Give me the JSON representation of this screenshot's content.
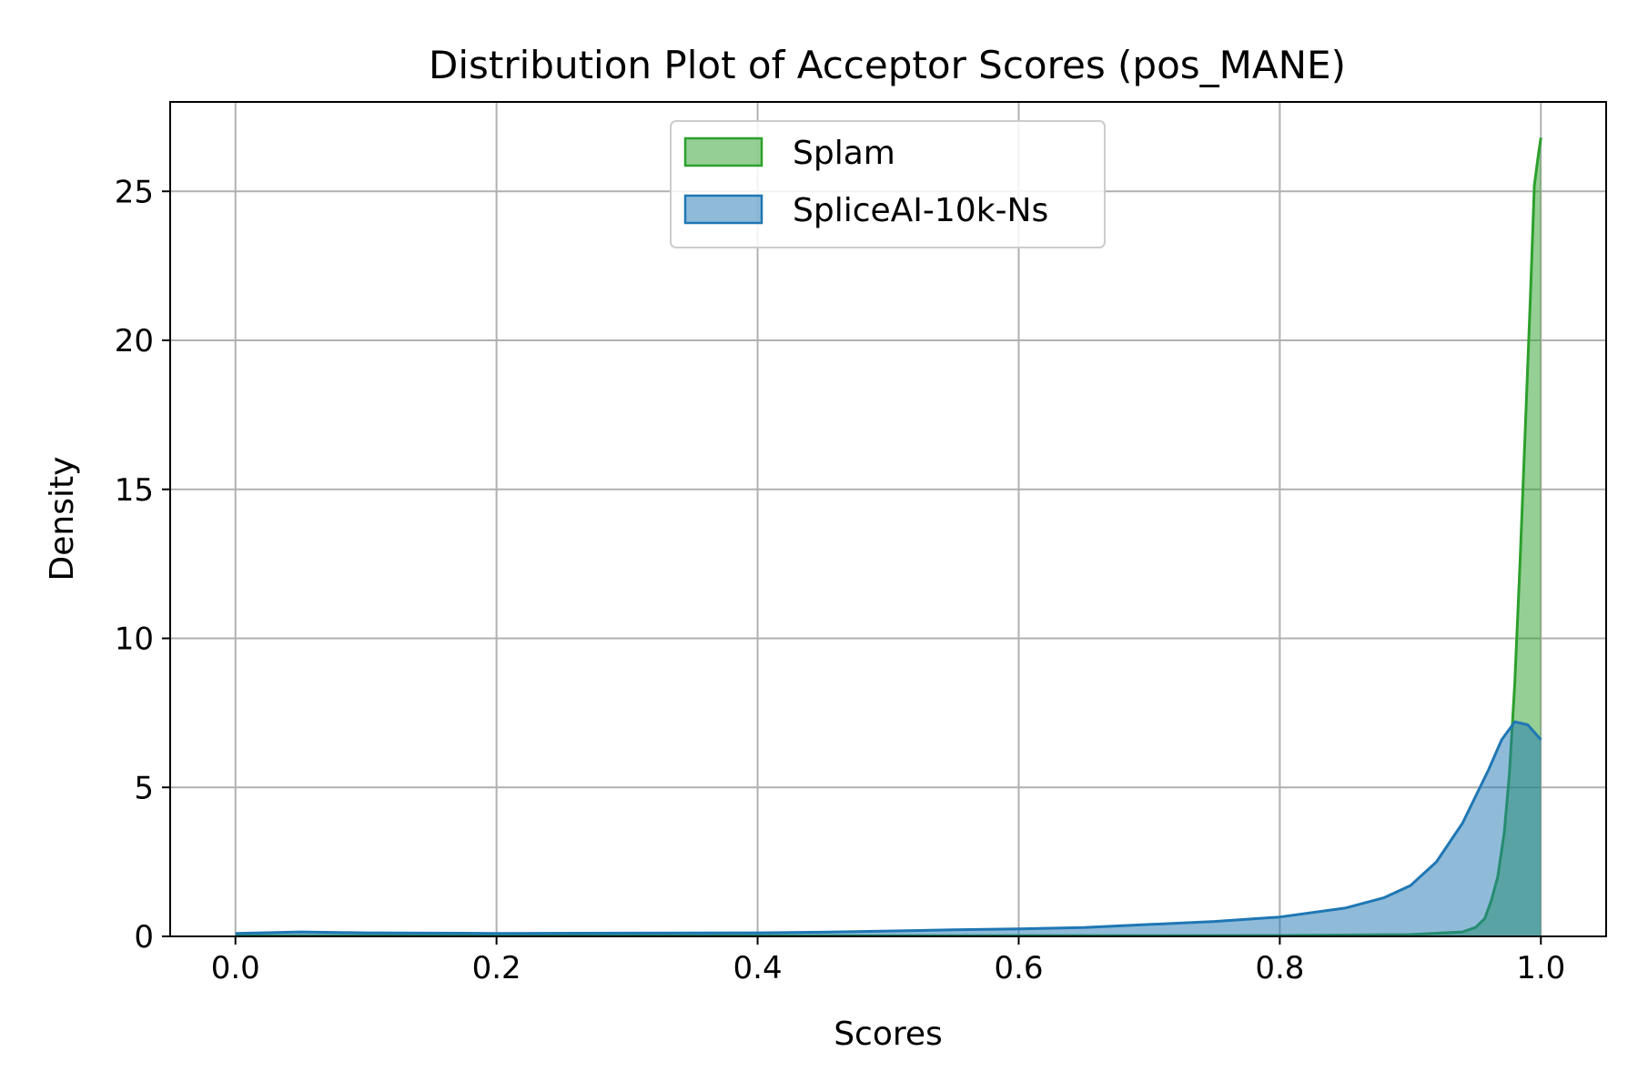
{
  "chart_data": {
    "type": "area",
    "title": "Distribution Plot of Acceptor Scores (pos_MANE)",
    "xlabel": "Scores",
    "ylabel": "Density",
    "xlim": [
      -0.05,
      1.05
    ],
    "ylim": [
      0,
      28
    ],
    "xticks": [
      0.0,
      0.2,
      0.4,
      0.6,
      0.8,
      1.0
    ],
    "xtick_labels": [
      "0.0",
      "0.2",
      "0.4",
      "0.6",
      "0.8",
      "1.0"
    ],
    "yticks": [
      0,
      5,
      10,
      15,
      20,
      25
    ],
    "ytick_labels": [
      "0",
      "5",
      "10",
      "15",
      "20",
      "25"
    ],
    "grid": true,
    "legend_position": "top-center",
    "series": [
      {
        "name": "Splam",
        "color": "#2ca02c",
        "fill_color": "#98d091",
        "x": [
          0.0,
          0.5,
          0.8,
          0.9,
          0.94,
          0.95,
          0.957,
          0.962,
          0.967,
          0.972,
          0.976,
          0.98,
          0.984,
          0.988,
          0.992,
          0.995,
          0.998,
          1.0
        ],
        "y": [
          0.02,
          0.02,
          0.03,
          0.06,
          0.15,
          0.3,
          0.6,
          1.2,
          2.0,
          3.5,
          5.5,
          8.5,
          12.5,
          17.0,
          21.5,
          25.2,
          26.2,
          26.8
        ]
      },
      {
        "name": "SpliceAI-10k-Ns",
        "color": "#1f77b4",
        "fill_color": "#8fbadc",
        "x": [
          0.0,
          0.05,
          0.1,
          0.2,
          0.3,
          0.4,
          0.45,
          0.5,
          0.55,
          0.6,
          0.65,
          0.7,
          0.75,
          0.8,
          0.85,
          0.88,
          0.9,
          0.92,
          0.94,
          0.96,
          0.97,
          0.98,
          0.99,
          1.0
        ],
        "y": [
          0.1,
          0.15,
          0.12,
          0.1,
          0.11,
          0.12,
          0.14,
          0.18,
          0.22,
          0.25,
          0.3,
          0.4,
          0.5,
          0.65,
          0.95,
          1.3,
          1.7,
          2.5,
          3.8,
          5.6,
          6.6,
          7.2,
          7.1,
          6.6
        ]
      }
    ]
  }
}
